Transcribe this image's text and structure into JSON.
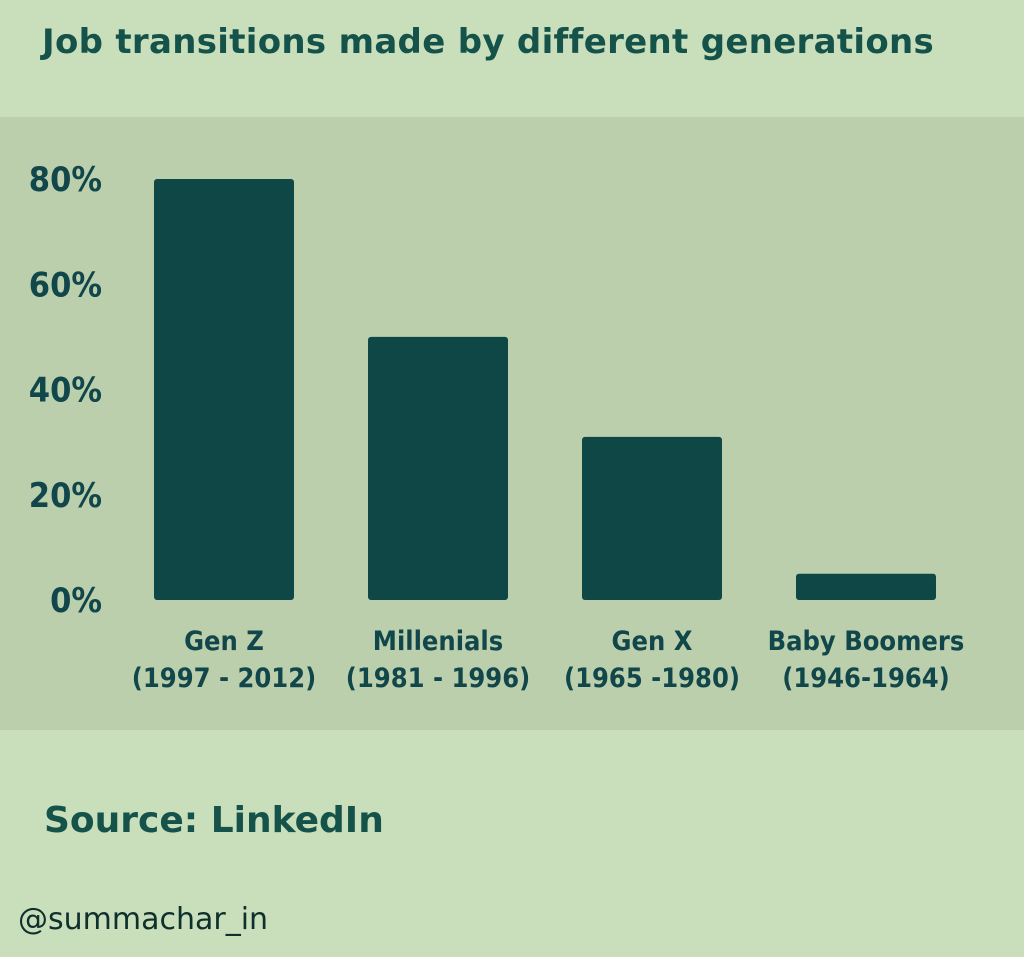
{
  "title": "Job transitions made by different generations",
  "source": "Source: LinkedIn",
  "handle": "@summachar_in",
  "colors": {
    "background": "#c9deba",
    "chart_panel": "#bccfad",
    "bar": "#0f4747",
    "text": "#14524a"
  },
  "chart_data": {
    "type": "bar",
    "title": "Job transitions made by different generations",
    "xlabel": "",
    "ylabel": "",
    "ylim": [
      0,
      80
    ],
    "yticks": [
      0,
      20,
      40,
      60,
      80
    ],
    "ytick_labels": [
      "0%",
      "20%",
      "40%",
      "60%",
      "80%"
    ],
    "grid": false,
    "legend": "none",
    "categories": [
      [
        "Gen Z",
        "(1997 - 2012)"
      ],
      [
        "Millenials",
        "(1981 - 1996)"
      ],
      [
        "Gen X",
        "(1965 -1980)"
      ],
      [
        "Baby Boomers",
        "(1946-1964)"
      ]
    ],
    "values": [
      80,
      50,
      31,
      5
    ]
  }
}
